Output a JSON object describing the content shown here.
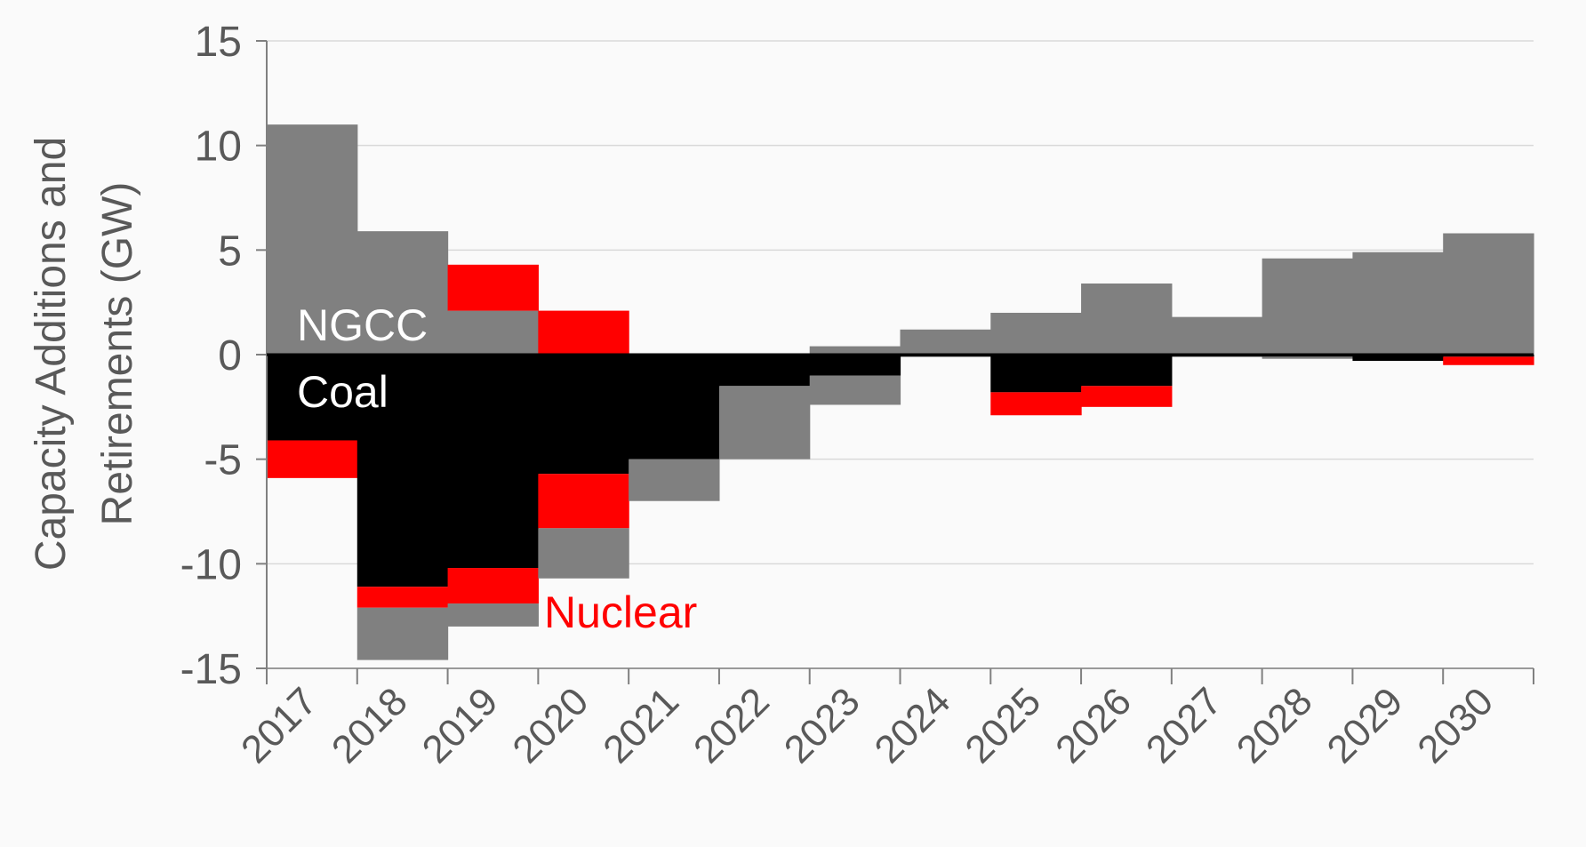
{
  "chart_data": {
    "type": "bar",
    "stacking": "stacked-diverging",
    "categories": [
      "2017",
      "2018",
      "2019",
      "2020",
      "2021",
      "2022",
      "2023",
      "2024",
      "2025",
      "2026",
      "2027",
      "2028",
      "2029",
      "2030"
    ],
    "series": [
      {
        "name": "NGCC",
        "color": "#808080",
        "positive": [
          11.0,
          5.9,
          2.1,
          0,
          0,
          0,
          0.4,
          1.2,
          2.0,
          3.4,
          1.8,
          4.6,
          4.9,
          5.8
        ],
        "negative": [
          0,
          -2.5,
          -1.1,
          -2.4,
          -2.0,
          -3.5,
          -1.4,
          0,
          0,
          0,
          0,
          -0.1,
          0,
          0
        ]
      },
      {
        "name": "Coal",
        "color": "#000000",
        "positive": [
          0,
          0,
          0,
          0,
          0,
          0,
          0,
          0,
          0,
          0,
          0,
          0,
          0,
          0
        ],
        "negative": [
          -4.1,
          -11.1,
          -10.2,
          -5.7,
          -5.0,
          -1.5,
          -1.0,
          -0.1,
          -1.8,
          -1.5,
          -0.1,
          -0.1,
          -0.3,
          -0.1
        ]
      },
      {
        "name": "Nuclear",
        "color": "#ff0000",
        "positive": [
          0,
          0,
          2.2,
          2.1,
          0,
          0,
          0,
          0,
          0,
          0,
          0,
          0,
          0,
          0
        ],
        "negative": [
          -1.8,
          -1.0,
          -1.7,
          -2.6,
          0,
          0,
          0,
          0,
          -1.1,
          -1.0,
          0,
          0,
          0,
          -0.4
        ]
      }
    ],
    "ylabel": "Capacity Additions and Retirements (GW)",
    "ylim": [
      -15,
      15
    ],
    "yticks": [
      15,
      10,
      5,
      0,
      -5,
      -10,
      -15
    ],
    "ytick_labels": [
      "15",
      "10",
      "5",
      "0",
      "-5",
      "-10",
      "-15"
    ],
    "grid": "horizontal",
    "legend": "none",
    "annotations": [
      {
        "text": "NGCC",
        "color": "#ffffff"
      },
      {
        "text": "Coal",
        "color": "#ffffff"
      },
      {
        "text": "Nuclear",
        "color": "#ff0000"
      }
    ]
  }
}
